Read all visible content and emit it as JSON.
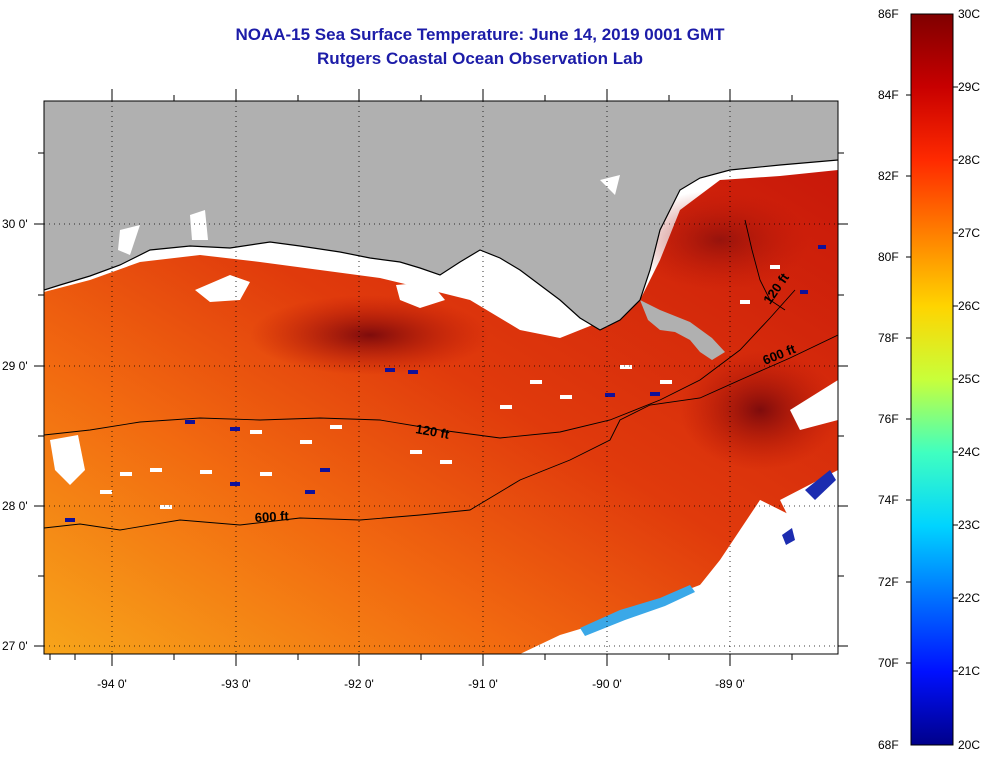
{
  "title": {
    "line1": "NOAA-15 Sea Surface Temperature:  June 14, 2019 0001 GMT",
    "line2": "Rutgers Coastal Ocean Observation Lab"
  },
  "map": {
    "lat_labels": [
      "30 0'",
      "29 0'",
      "28 0'",
      "27 0'"
    ],
    "lon_labels": [
      "-94 0'",
      "-93 0'",
      "-92 0'",
      "-91 0'",
      "-90 0'",
      "-89 0'"
    ],
    "contour_labels": [
      "120 ft",
      "600 ft",
      "120 ft",
      "600 ft"
    ],
    "colors": {
      "land": "#b0b0b0",
      "cloud": "#ffffff",
      "coastline": "#000000",
      "sst_warm": "#d0200a",
      "sst_hot": "#8a0c0c",
      "sst_mid": "#f2520c",
      "sst_cool": "#f9a010"
    }
  },
  "colorbar": {
    "fahrenheit_labels": [
      "86F",
      "84F",
      "82F",
      "80F",
      "78F",
      "76F",
      "74F",
      "72F",
      "70F",
      "68F"
    ],
    "celsius_labels": [
      "30C",
      "29C",
      "28C",
      "27C",
      "26C",
      "25C",
      "24C",
      "23C",
      "22C",
      "21C",
      "20C"
    ],
    "gradient": [
      "#7f0000",
      "#c80000",
      "#ff2a00",
      "#ff7f00",
      "#ffd400",
      "#c8ff3a",
      "#40ffc0",
      "#00d4ff",
      "#0070ff",
      "#0010ff",
      "#00008a"
    ]
  }
}
